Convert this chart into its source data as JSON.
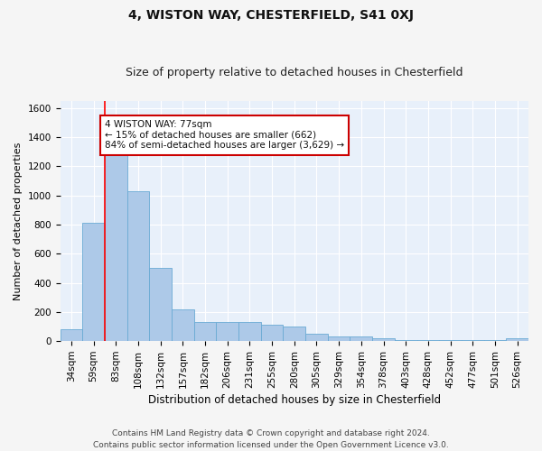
{
  "title1": "4, WISTON WAY, CHESTERFIELD, S41 0XJ",
  "title2": "Size of property relative to detached houses in Chesterfield",
  "xlabel": "Distribution of detached houses by size in Chesterfield",
  "ylabel": "Number of detached properties",
  "categories": [
    "34sqm",
    "59sqm",
    "83sqm",
    "108sqm",
    "132sqm",
    "157sqm",
    "182sqm",
    "206sqm",
    "231sqm",
    "255sqm",
    "280sqm",
    "305sqm",
    "329sqm",
    "354sqm",
    "378sqm",
    "403sqm",
    "428sqm",
    "452sqm",
    "477sqm",
    "501sqm",
    "526sqm"
  ],
  "values": [
    80,
    810,
    1300,
    1030,
    500,
    215,
    130,
    130,
    130,
    110,
    100,
    50,
    30,
    30,
    20,
    10,
    5,
    5,
    5,
    5,
    20
  ],
  "bar_color": "#adc9e8",
  "bar_edge_color": "#6aaad4",
  "background_color": "#e8f0fa",
  "grid_color": "#ffffff",
  "annotation_text": "4 WISTON WAY: 77sqm\n← 15% of detached houses are smaller (662)\n84% of semi-detached houses are larger (3,629) →",
  "annotation_box_color": "#ffffff",
  "annotation_box_edge_color": "#cc0000",
  "redline_x": 1.5,
  "ylim": [
    0,
    1650
  ],
  "yticks": [
    0,
    200,
    400,
    600,
    800,
    1000,
    1200,
    1400,
    1600
  ],
  "footer1": "Contains HM Land Registry data © Crown copyright and database right 2024.",
  "footer2": "Contains public sector information licensed under the Open Government Licence v3.0.",
  "title1_fontsize": 10,
  "title2_fontsize": 9,
  "xlabel_fontsize": 8.5,
  "ylabel_fontsize": 8,
  "tick_fontsize": 7.5,
  "annotation_fontsize": 7.5,
  "footer_fontsize": 6.5
}
